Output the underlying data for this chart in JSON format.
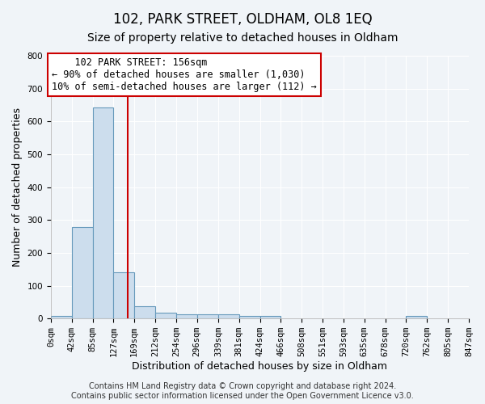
{
  "title": "102, PARK STREET, OLDHAM, OL8 1EQ",
  "subtitle": "Size of property relative to detached houses in Oldham",
  "xlabel": "Distribution of detached houses by size in Oldham",
  "ylabel": "Number of detached properties",
  "bin_edges": [
    0,
    42,
    85,
    127,
    169,
    212,
    254,
    296,
    339,
    381,
    424,
    466,
    508,
    551,
    593,
    635,
    678,
    720,
    762,
    805,
    847
  ],
  "bar_heights": [
    8,
    278,
    642,
    140,
    37,
    18,
    12,
    12,
    12,
    8,
    8,
    0,
    0,
    0,
    0,
    0,
    0,
    8,
    0,
    0
  ],
  "bar_color": "#ccdded",
  "bar_edge_color": "#6699bb",
  "property_size": 156,
  "red_line_color": "#cc0000",
  "annotation_line1": "    102 PARK STREET: 156sqm",
  "annotation_line2": "← 90% of detached houses are smaller (1,030)",
  "annotation_line3": "10% of semi-detached houses are larger (112) →",
  "annotation_box_color": "#ffffff",
  "annotation_box_edge_color": "#cc0000",
  "ylim": [
    0,
    800
  ],
  "yticks": [
    0,
    100,
    200,
    300,
    400,
    500,
    600,
    700,
    800
  ],
  "tick_labels": [
    "0sqm",
    "42sqm",
    "85sqm",
    "127sqm",
    "169sqm",
    "212sqm",
    "254sqm",
    "296sqm",
    "339sqm",
    "381sqm",
    "424sqm",
    "466sqm",
    "508sqm",
    "551sqm",
    "593sqm",
    "635sqm",
    "678sqm",
    "720sqm",
    "762sqm",
    "805sqm",
    "847sqm"
  ],
  "footer_text": "Contains HM Land Registry data © Crown copyright and database right 2024.\nContains public sector information licensed under the Open Government Licence v3.0.",
  "bg_color": "#f0f4f8",
  "plot_bg_color": "#f0f4f8",
  "grid_color": "#ffffff",
  "title_fontsize": 12,
  "subtitle_fontsize": 10,
  "axis_label_fontsize": 9,
  "tick_fontsize": 7.5,
  "annotation_fontsize": 8.5,
  "footer_fontsize": 7
}
